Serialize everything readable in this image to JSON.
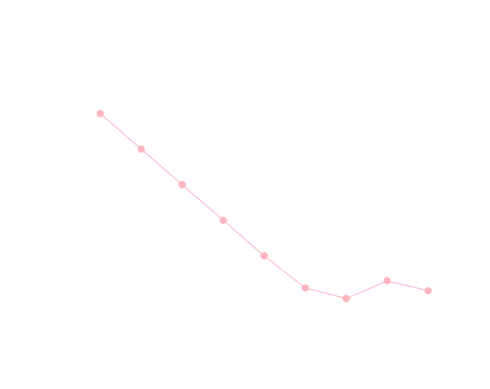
{
  "chart_data": {
    "type": "line",
    "title": "",
    "xlabel": "",
    "ylabel": "",
    "grid": false,
    "legend": "none",
    "x": [
      1,
      2,
      3,
      4,
      5,
      6,
      7,
      8,
      9
    ],
    "series": [
      {
        "values": [
          100,
          90,
          80,
          70,
          60,
          51,
          48,
          53,
          50.2
        ],
        "color": "#FFB6C1"
      }
    ],
    "xlim": [
      0,
      10
    ],
    "ylim": [
      30,
      120
    ]
  }
}
